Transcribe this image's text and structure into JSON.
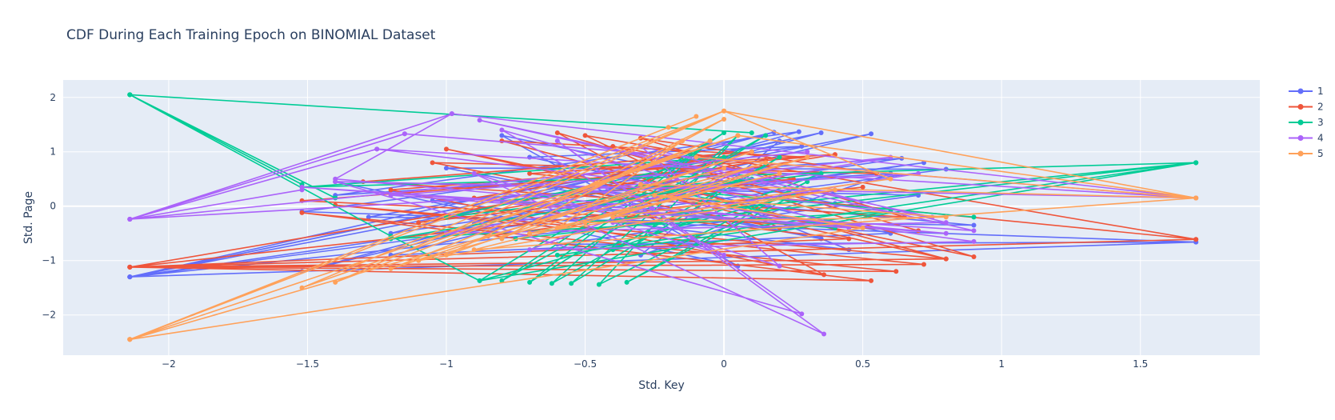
{
  "chart_data": {
    "type": "line",
    "title": "CDF During Each Training Epoch on BINOMIAL Dataset",
    "xlabel": "Std. Key",
    "ylabel": "Std. Page",
    "xlim": [
      -2.38,
      1.93
    ],
    "ylim": [
      -2.74,
      2.32
    ],
    "x_ticks": [
      -2,
      -1.5,
      -1,
      -0.5,
      0,
      0.5,
      1,
      1.5
    ],
    "x_tick_labels": [
      "−2",
      "−1.5",
      "−1",
      "−0.5",
      "0",
      "0.5",
      "1",
      "1.5"
    ],
    "y_ticks": [
      -2,
      -1,
      0,
      1,
      2
    ],
    "y_tick_labels": [
      "−2",
      "−1",
      "0",
      "1",
      "2"
    ],
    "grid": true,
    "legend_position": "top-right",
    "series": [
      {
        "name": "1",
        "color": "#636efa",
        "x": [
          -2.14,
          0.35,
          -1.52,
          0.53,
          -2.14,
          0.18,
          -1.2,
          0.64,
          -1.4,
          0.27,
          -0.9,
          0.72,
          -2.14,
          0.8,
          -1.0,
          0.35,
          -0.5,
          0.9,
          -1.28,
          0.1,
          -0.2,
          0.45,
          -1.05,
          0.6,
          -0.3,
          0.2,
          -2.14,
          1.7,
          -0.6,
          0.7,
          -1.4,
          0.05,
          -0.8,
          0.4,
          -2.14,
          1.7,
          -1.52,
          0.28,
          -0.7,
          0.6,
          -1.2,
          0.15
        ],
        "y": [
          -1.3,
          1.35,
          -1.2,
          1.33,
          -1.3,
          1.36,
          -0.5,
          0.88,
          0.2,
          1.37,
          -0.3,
          0.8,
          -1.3,
          0.68,
          0.7,
          -0.6,
          0.3,
          -0.35,
          -0.2,
          1.0,
          0.5,
          -0.8,
          0.1,
          0.6,
          -0.9,
          1.2,
          -1.3,
          -0.66,
          -0.7,
          0.2,
          0.45,
          -1.1,
          1.3,
          0.05,
          -1.3,
          -0.66,
          -0.1,
          1.1,
          0.9,
          -0.5,
          -0.9,
          0.75
        ]
      },
      {
        "name": "2",
        "color": "#ef553b",
        "x": [
          -2.14,
          0.53,
          -1.52,
          0.62,
          -2.14,
          0.72,
          -1.4,
          0.8,
          -1.0,
          0.9,
          -0.6,
          0.36,
          -1.2,
          0.3,
          -0.8,
          0.8,
          -2.14,
          1.7,
          -0.5,
          0.2,
          -1.05,
          0.55,
          -0.3,
          0.65,
          -1.3,
          0.1,
          -0.9,
          0.45,
          -2.14,
          1.7,
          -0.7,
          0.4,
          -1.1,
          0.25,
          -0.4,
          0.7,
          -1.52,
          0.0,
          -0.85,
          0.5,
          -2.14,
          0.15
        ],
        "y": [
          -1.12,
          -1.37,
          -0.12,
          -1.2,
          -1.12,
          -1.07,
          0.02,
          -0.97,
          1.05,
          -0.93,
          1.35,
          -1.26,
          0.3,
          0.9,
          1.2,
          -0.97,
          -1.12,
          -0.61,
          1.3,
          -0.4,
          0.8,
          0.6,
          1.25,
          -0.2,
          0.45,
          1.0,
          0.15,
          -0.6,
          -1.12,
          -0.61,
          0.6,
          0.95,
          -0.3,
          0.5,
          1.1,
          -0.45,
          0.1,
          0.7,
          -0.55,
          0.35,
          -1.12,
          0.85
        ]
      },
      {
        "name": "3",
        "color": "#00cc96",
        "x": [
          -2.14,
          0.1,
          -2.14,
          -1.52,
          -2.14,
          -1.4,
          -2.14,
          -1.2,
          -0.88,
          0.0,
          -0.8,
          0.15,
          -0.7,
          -0.05,
          -0.62,
          0.2,
          -0.55,
          0.05,
          -0.45,
          0.3,
          -0.35,
          0.25,
          -0.88,
          1.7,
          -0.6,
          1.7,
          -0.75,
          1.7,
          -0.5,
          1.7,
          -1.52,
          0.0,
          -1.0,
          0.35,
          -0.4,
          0.6,
          -1.2,
          0.1,
          -0.8,
          0.4,
          -0.2,
          0.9
        ],
        "y": [
          2.05,
          1.35,
          2.05,
          0.4,
          2.05,
          0.15,
          2.05,
          -0.55,
          -1.37,
          1.35,
          -1.37,
          1.3,
          -1.4,
          1.2,
          -1.42,
          0.9,
          -1.42,
          1.3,
          -1.44,
          0.45,
          -1.4,
          0.2,
          -1.37,
          0.8,
          -0.9,
          0.8,
          -0.6,
          0.8,
          -0.3,
          0.8,
          0.35,
          0.9,
          -0.2,
          0.6,
          -0.8,
          -0.1,
          -0.6,
          0.5,
          0.1,
          -0.4,
          0.3,
          -0.2
        ]
      },
      {
        "name": "4",
        "color": "#ab63fa",
        "x": [
          -2.14,
          -1.52,
          -2.14,
          -1.25,
          -2.14,
          -1.15,
          -2.14,
          -0.98,
          -1.4,
          0.8,
          -1.52,
          0.9,
          -0.88,
          0.75,
          -1.25,
          1.7,
          -1.15,
          1.7,
          -0.98,
          1.7,
          -1.4,
          0.28,
          -0.6,
          0.36,
          -0.9,
          0.2,
          -0.3,
          0.8,
          -1.0,
          0.6,
          -0.5,
          0.9,
          -0.7,
          0.1,
          -1.2,
          0.45,
          -0.8,
          0.0,
          -0.4,
          0.7,
          -2.14,
          0.3
        ],
        "y": [
          -0.24,
          0.3,
          -0.24,
          1.05,
          -0.24,
          1.33,
          -0.24,
          1.7,
          0.5,
          -0.5,
          0.35,
          -0.45,
          1.58,
          -0.2,
          1.05,
          0.15,
          1.33,
          0.15,
          1.7,
          0.15,
          0.45,
          -1.98,
          1.2,
          -2.35,
          0.6,
          -1.1,
          1.1,
          -0.3,
          -0.5,
          0.9,
          0.3,
          -0.65,
          -0.8,
          0.7,
          0.2,
          -0.4,
          1.4,
          -0.9,
          -0.3,
          0.6,
          -0.24,
          1.0
        ]
      },
      {
        "name": "5",
        "color": "#ffa15a",
        "x": [
          -2.14,
          -0.1,
          -2.14,
          0.0,
          -2.14,
          -0.2,
          -2.14,
          0.05,
          -1.52,
          0.0,
          -1.4,
          -0.05,
          -1.2,
          0.1,
          -1.0,
          0.0,
          -0.8,
          -0.15,
          -0.6,
          0.3,
          -0.4,
          0.6,
          0.0,
          1.7,
          0.05,
          1.7,
          -0.1,
          1.7,
          -0.3,
          1.7,
          -0.9,
          0.2,
          -0.7,
          0.4,
          -1.1,
          0.15,
          -0.5,
          0.8,
          -0.25,
          0.5,
          -2.14,
          0.0
        ],
        "y": [
          -2.45,
          1.65,
          -2.45,
          1.75,
          -2.45,
          1.45,
          -2.45,
          1.3,
          -1.5,
          1.75,
          -1.4,
          1.2,
          -1.15,
          1.0,
          -0.9,
          1.6,
          -0.6,
          1.2,
          -0.4,
          0.9,
          -0.2,
          0.5,
          1.75,
          0.15,
          1.3,
          0.15,
          0.9,
          0.15,
          0.4,
          0.15,
          -0.8,
          0.6,
          -0.5,
          0.3,
          -1.0,
          0.8,
          -0.3,
          -0.2,
          0.2,
          -0.4,
          -2.45,
          0.7
        ]
      }
    ]
  }
}
